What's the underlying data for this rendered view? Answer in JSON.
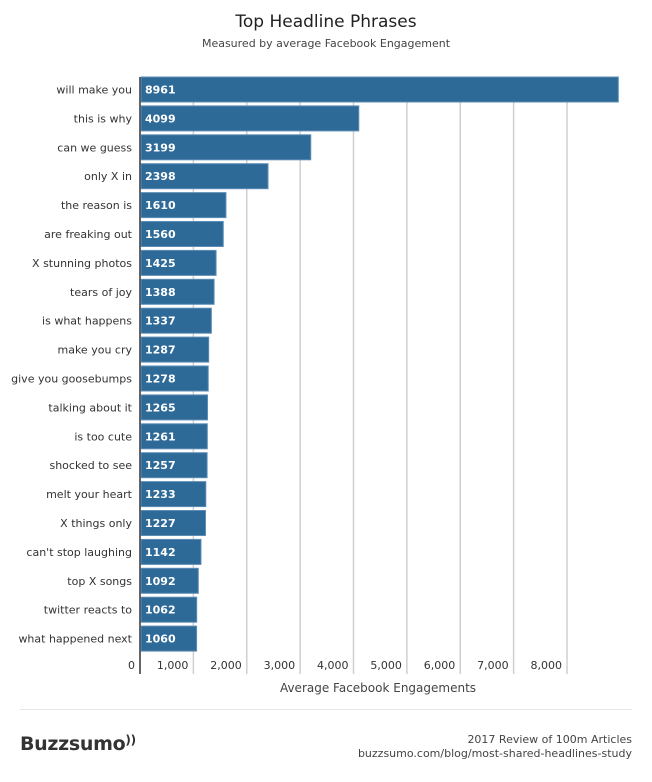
{
  "chart_data": {
    "type": "bar",
    "orientation": "horizontal",
    "title": "Top Headline Phrases",
    "subtitle": "Measured by average Facebook Engagement",
    "xlabel": "Average Facebook Engagements",
    "ylabel": "",
    "xlim": [
      0,
      9000
    ],
    "xticks": [
      0,
      1000,
      2000,
      3000,
      4000,
      5000,
      6000,
      7000,
      8000
    ],
    "xtick_labels": [
      "0",
      "1,000",
      "2,000",
      "3,000",
      "4,000",
      "5,000",
      "6,000",
      "7,000",
      "8,000"
    ],
    "grid": true,
    "bar_color": "#2e6a98",
    "categories": [
      "will make you",
      "this is why",
      "can we guess",
      "only X in",
      "the reason is",
      "are freaking out",
      "X stunning photos",
      "tears of joy",
      "is what happens",
      "make you cry",
      "give you goosebumps",
      "talking about it",
      "is too cute",
      "shocked to see",
      "melt your heart",
      "X things only",
      "can't stop laughing",
      "top X songs",
      "twitter reacts to",
      "what happened next"
    ],
    "values": [
      8961,
      4099,
      3199,
      2398,
      1610,
      1560,
      1425,
      1388,
      1337,
      1287,
      1278,
      1265,
      1261,
      1257,
      1233,
      1227,
      1142,
      1092,
      1062,
      1060
    ]
  },
  "footer": {
    "logo_text": "Buzzsumo",
    "logo_icon": "signal-waves-icon",
    "line1": "2017 Review of 100m Articles",
    "line2": "buzzsumo.com/blog/most-shared-headlines-study"
  }
}
